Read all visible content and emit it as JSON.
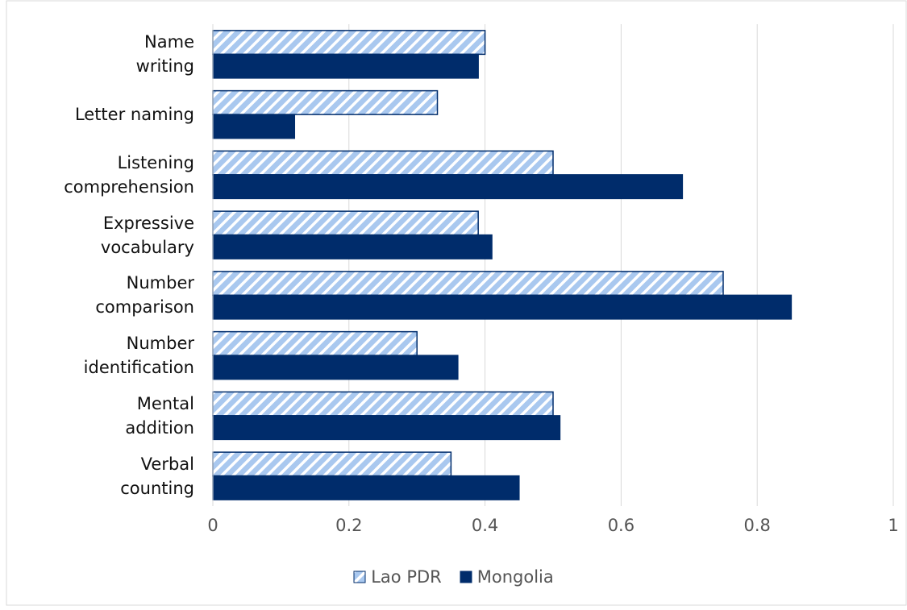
{
  "chart_data": {
    "type": "bar",
    "orientation": "horizontal",
    "categories": [
      "Name\nwriting",
      "Letter naming",
      "Listening\ncomprehension",
      "Expressive\nvocabulary",
      "Number\ncomparison",
      "Number\nidentification",
      "Mental\naddition",
      "Verbal\ncounting"
    ],
    "series": [
      {
        "name": "Lao PDR",
        "color": "#a9c8ef",
        "values": [
          0.4,
          0.33,
          0.5,
          0.39,
          0.75,
          0.3,
          0.5,
          0.35
        ]
      },
      {
        "name": "Mongolia",
        "color": "#002c6b",
        "values": [
          0.39,
          0.12,
          0.69,
          0.41,
          0.85,
          0.36,
          0.51,
          0.45
        ]
      }
    ],
    "xlim": [
      0,
      1
    ],
    "xticks": [
      0,
      0.2,
      0.4,
      0.6,
      0.8,
      1
    ],
    "grid": true,
    "legend": "bottom"
  }
}
